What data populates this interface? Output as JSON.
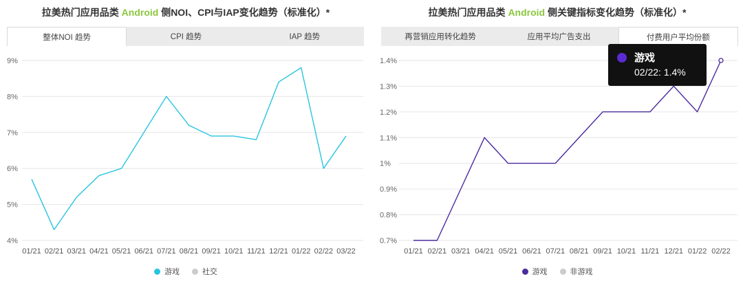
{
  "left": {
    "title_prefix": "拉美热门应用品类 ",
    "title_accent": "Android",
    "title_suffix": " 侧NOI、CPI与IAP变化趋势（标准化）*",
    "tabs": [
      "整体NOI 趋势",
      "CPI 趋势",
      "IAP 趋势"
    ],
    "active_tab": 0,
    "legend": [
      {
        "label": "游戏",
        "color": "#29c4e0"
      },
      {
        "label": "社交",
        "color": "#cccccc"
      }
    ]
  },
  "right": {
    "title_prefix": "拉美热门应用品类 ",
    "title_accent": "Android",
    "title_suffix": " 侧关键指标变化趋势（标准化）*",
    "tabs": [
      "再营销应用转化趋势",
      "应用平均广告支出",
      "付费用户平均份额"
    ],
    "active_tab": 2,
    "legend": [
      {
        "label": "游戏",
        "color": "#4b2a9e"
      },
      {
        "label": "非游戏",
        "color": "#cccccc"
      }
    ],
    "tooltip": {
      "series": "游戏",
      "value": "02/22: 1.4%",
      "color": "#5b2bd1"
    }
  },
  "chart_data": [
    {
      "type": "line",
      "x": [
        "01/21",
        "02/21",
        "03/21",
        "04/21",
        "05/21",
        "06/21",
        "07/21",
        "08/21",
        "09/21",
        "10/21",
        "11/21",
        "12/21",
        "01/22",
        "02/22",
        "03/22"
      ],
      "y_ticks": [
        "4%",
        "5%",
        "6%",
        "7%",
        "8%",
        "9%"
      ],
      "ylim": [
        4,
        9
      ],
      "grid": true,
      "series": [
        {
          "name": "游戏",
          "color": "#29c4e0",
          "values": [
            5.7,
            4.3,
            5.2,
            5.8,
            6.0,
            7.0,
            8.0,
            7.2,
            6.9,
            6.9,
            6.8,
            8.4,
            8.8,
            6.0,
            6.9
          ]
        }
      ]
    },
    {
      "type": "line",
      "x": [
        "01/21",
        "02/21",
        "03/21",
        "04/21",
        "05/21",
        "06/21",
        "07/21",
        "08/21",
        "09/21",
        "10/21",
        "11/21",
        "12/21",
        "01/22",
        "02/22"
      ],
      "y_ticks": [
        "0.7%",
        "0.8%",
        "0.9%",
        "1%",
        "1.1%",
        "1.2%",
        "1.3%",
        "1.4%"
      ],
      "ylim": [
        0.7,
        1.4
      ],
      "grid": true,
      "series": [
        {
          "name": "游戏",
          "color": "#4b2a9e",
          "values": [
            0.7,
            0.7,
            0.9,
            1.1,
            1.0,
            1.0,
            1.0,
            1.1,
            1.2,
            1.2,
            1.2,
            1.3,
            1.2,
            1.4
          ]
        }
      ]
    }
  ]
}
